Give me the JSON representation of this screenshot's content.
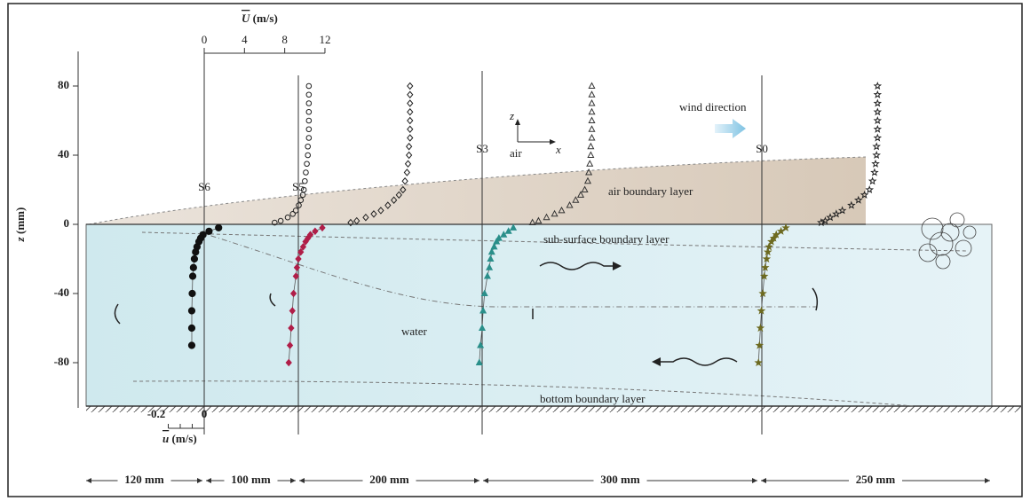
{
  "axes": {
    "z_symbol": "z",
    "z_unit": "(mm)",
    "z_ticks": [
      80,
      40,
      0,
      -40,
      -80
    ],
    "U_symbol": "U",
    "U_unit": "(m/s)",
    "U_ticks": [
      0,
      4,
      8,
      12
    ],
    "u_symbol": "u",
    "u_unit": "(m/s)",
    "u_ticks": [
      -0.2,
      0
    ]
  },
  "air_z": [
    80,
    75,
    70,
    65,
    60,
    55,
    50,
    45,
    40,
    35,
    30,
    25,
    20,
    17,
    14,
    11,
    8,
    6,
    4,
    2,
    1
  ],
  "water_z": [
    -2,
    -4,
    -6,
    -8,
    -10,
    -13,
    -16,
    -20,
    -25,
    -30,
    -40,
    -50,
    -60,
    -70,
    -80
  ],
  "stations": [
    {
      "name": "S6",
      "air_U": [
        10.4,
        10.4,
        10.4,
        10.4,
        10.4,
        10.4,
        10.4,
        10.3,
        10.3,
        10.2,
        10.1,
        10.0,
        9.9,
        9.8,
        9.6,
        9.4,
        9.1,
        8.8,
        8.3,
        7.6,
        7.0
      ],
      "water_u": [
        0.06,
        0.02,
        -0.005,
        -0.015,
        -0.022,
        -0.03,
        -0.036,
        -0.041,
        -0.045,
        -0.048,
        -0.05,
        -0.052,
        -0.052,
        -0.052,
        null
      ]
    },
    {
      "name": "S5",
      "air_U": [
        11.1,
        11.1,
        11.1,
        11.1,
        11.1,
        11.1,
        11.1,
        11.0,
        11.0,
        10.9,
        10.8,
        10.6,
        10.4,
        10.0,
        9.5,
        8.9,
        8.2,
        7.5,
        6.7,
        5.8,
        5.2
      ],
      "water_u": [
        0.1,
        0.07,
        0.05,
        0.04,
        0.03,
        0.02,
        0.01,
        0.0,
        -0.006,
        -0.01,
        -0.02,
        -0.025,
        -0.03,
        -0.035,
        -0.04
      ]
    },
    {
      "name": "S3",
      "air_U": [
        10.9,
        10.9,
        10.9,
        10.9,
        10.9,
        10.9,
        10.9,
        10.8,
        10.8,
        10.7,
        10.6,
        10.5,
        10.2,
        9.8,
        9.3,
        8.7,
        7.9,
        7.2,
        6.4,
        5.6,
        5.0
      ],
      "water_u": [
        0.13,
        0.11,
        0.09,
        0.07,
        0.06,
        0.05,
        0.04,
        0.035,
        0.03,
        0.022,
        0.01,
        0.004,
        0.0,
        -0.007,
        -0.012
      ]
    },
    {
      "name": "S0",
      "air_U": [
        11.5,
        11.5,
        11.5,
        11.5,
        11.5,
        11.5,
        11.5,
        11.4,
        11.4,
        11.3,
        11.2,
        11.0,
        10.7,
        10.2,
        9.6,
        8.9,
        8.0,
        7.4,
        6.8,
        6.3,
        5.9
      ],
      "water_u": [
        0.1,
        0.08,
        0.06,
        0.05,
        0.04,
        0.03,
        0.025,
        0.02,
        0.014,
        0.01,
        0.004,
        -0.002,
        -0.006,
        -0.01,
        -0.014
      ]
    }
  ],
  "labels": {
    "wind": "wind direction",
    "air": "air",
    "z": "z",
    "x": "x",
    "air_bl": "air boundary layer",
    "sub_bl": "sub-surface boundary layer",
    "water": "water",
    "bottom_bl": "bottom boundary layer"
  },
  "spans": [
    "120 mm",
    "100 mm",
    "200 mm",
    "300 mm",
    "250 mm"
  ]
}
